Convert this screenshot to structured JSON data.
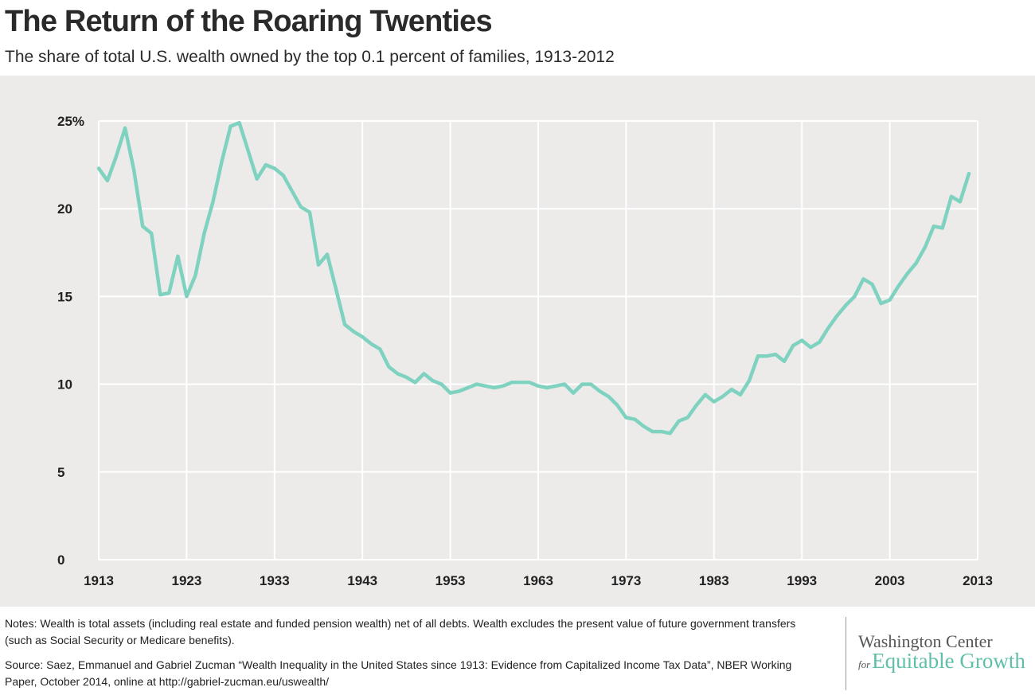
{
  "colors": {
    "line": "#7fd2bf",
    "panel_bg": "#ecebea",
    "grid": "#ffffff",
    "text": "#222222",
    "logo_accent": "#5fbfa9"
  },
  "notes": "Notes: Wealth is total assets (including real estate and funded pension wealth) net of all debts. Wealth excludes the present value of future government transfers (such as Social Security or Medicare benefits).",
  "source": "Source: Saez, Emmanuel and Gabriel Zucman “Wealth Inequality in the United States since 1913: Evidence from Capitalized Income Tax Data”, NBER Working Paper, October 2014, online at http://gabriel-zucman.eu/uswealth/",
  "logo": {
    "line1": "Washington Center",
    "for": "for",
    "line2": "Equitable Growth"
  },
  "chart_data": {
    "type": "line",
    "title": "The Return of the Roaring Twenties",
    "subtitle": "The share of total U.S. wealth owned by the top 0.1 percent of families, 1913-2012",
    "xlabel": "",
    "ylabel": "",
    "xlim": [
      1913,
      2013
    ],
    "ylim": [
      0,
      25
    ],
    "x_ticks": [
      1913,
      1923,
      1933,
      1943,
      1953,
      1963,
      1973,
      1983,
      1993,
      2003,
      2013
    ],
    "y_ticks": [
      0,
      5,
      10,
      15,
      20,
      25
    ],
    "y_tick_labels": [
      "0",
      "5",
      "10",
      "15",
      "20",
      "25%"
    ],
    "grid": true,
    "series": [
      {
        "name": "Top 0.1% wealth share",
        "x": [
          1913,
          1914,
          1915,
          1916,
          1917,
          1918,
          1919,
          1920,
          1921,
          1922,
          1923,
          1924,
          1925,
          1926,
          1927,
          1928,
          1929,
          1930,
          1931,
          1932,
          1933,
          1934,
          1935,
          1936,
          1937,
          1938,
          1939,
          1940,
          1941,
          1942,
          1943,
          1944,
          1945,
          1946,
          1947,
          1948,
          1949,
          1950,
          1951,
          1952,
          1953,
          1954,
          1955,
          1956,
          1957,
          1958,
          1959,
          1960,
          1961,
          1962,
          1963,
          1964,
          1965,
          1966,
          1967,
          1968,
          1969,
          1970,
          1971,
          1972,
          1973,
          1974,
          1975,
          1976,
          1977,
          1978,
          1979,
          1980,
          1981,
          1982,
          1983,
          1984,
          1985,
          1986,
          1987,
          1988,
          1989,
          1990,
          1991,
          1992,
          1993,
          1994,
          1995,
          1996,
          1997,
          1998,
          1999,
          2000,
          2001,
          2002,
          2003,
          2004,
          2005,
          2006,
          2007,
          2008,
          2009,
          2010,
          2011,
          2012
        ],
        "values": [
          22.3,
          21.6,
          23.0,
          24.6,
          22.2,
          19.0,
          18.6,
          15.1,
          15.2,
          17.3,
          15.0,
          16.2,
          18.6,
          20.4,
          22.7,
          24.7,
          24.9,
          23.3,
          21.7,
          22.5,
          22.3,
          21.9,
          21.0,
          20.1,
          19.8,
          16.8,
          17.4,
          15.4,
          13.4,
          13.0,
          12.7,
          12.3,
          12.0,
          11.0,
          10.6,
          10.4,
          10.1,
          10.6,
          10.2,
          10.0,
          9.5,
          9.6,
          9.8,
          10.0,
          9.9,
          9.8,
          9.9,
          10.1,
          10.1,
          10.1,
          9.9,
          9.8,
          9.9,
          10.0,
          9.5,
          10.0,
          10.0,
          9.6,
          9.3,
          8.8,
          8.1,
          8.0,
          7.6,
          7.3,
          7.3,
          7.2,
          7.9,
          8.1,
          8.8,
          9.4,
          9.0,
          9.3,
          9.7,
          9.4,
          10.2,
          11.6,
          11.6,
          11.7,
          11.3,
          12.2,
          12.5,
          12.1,
          12.4,
          13.2,
          13.9,
          14.5,
          15.0,
          16.0,
          15.7,
          14.6,
          14.8,
          15.6,
          16.3,
          16.9,
          17.8,
          19.0,
          18.9,
          20.7,
          20.4,
          22.0
        ]
      }
    ]
  }
}
